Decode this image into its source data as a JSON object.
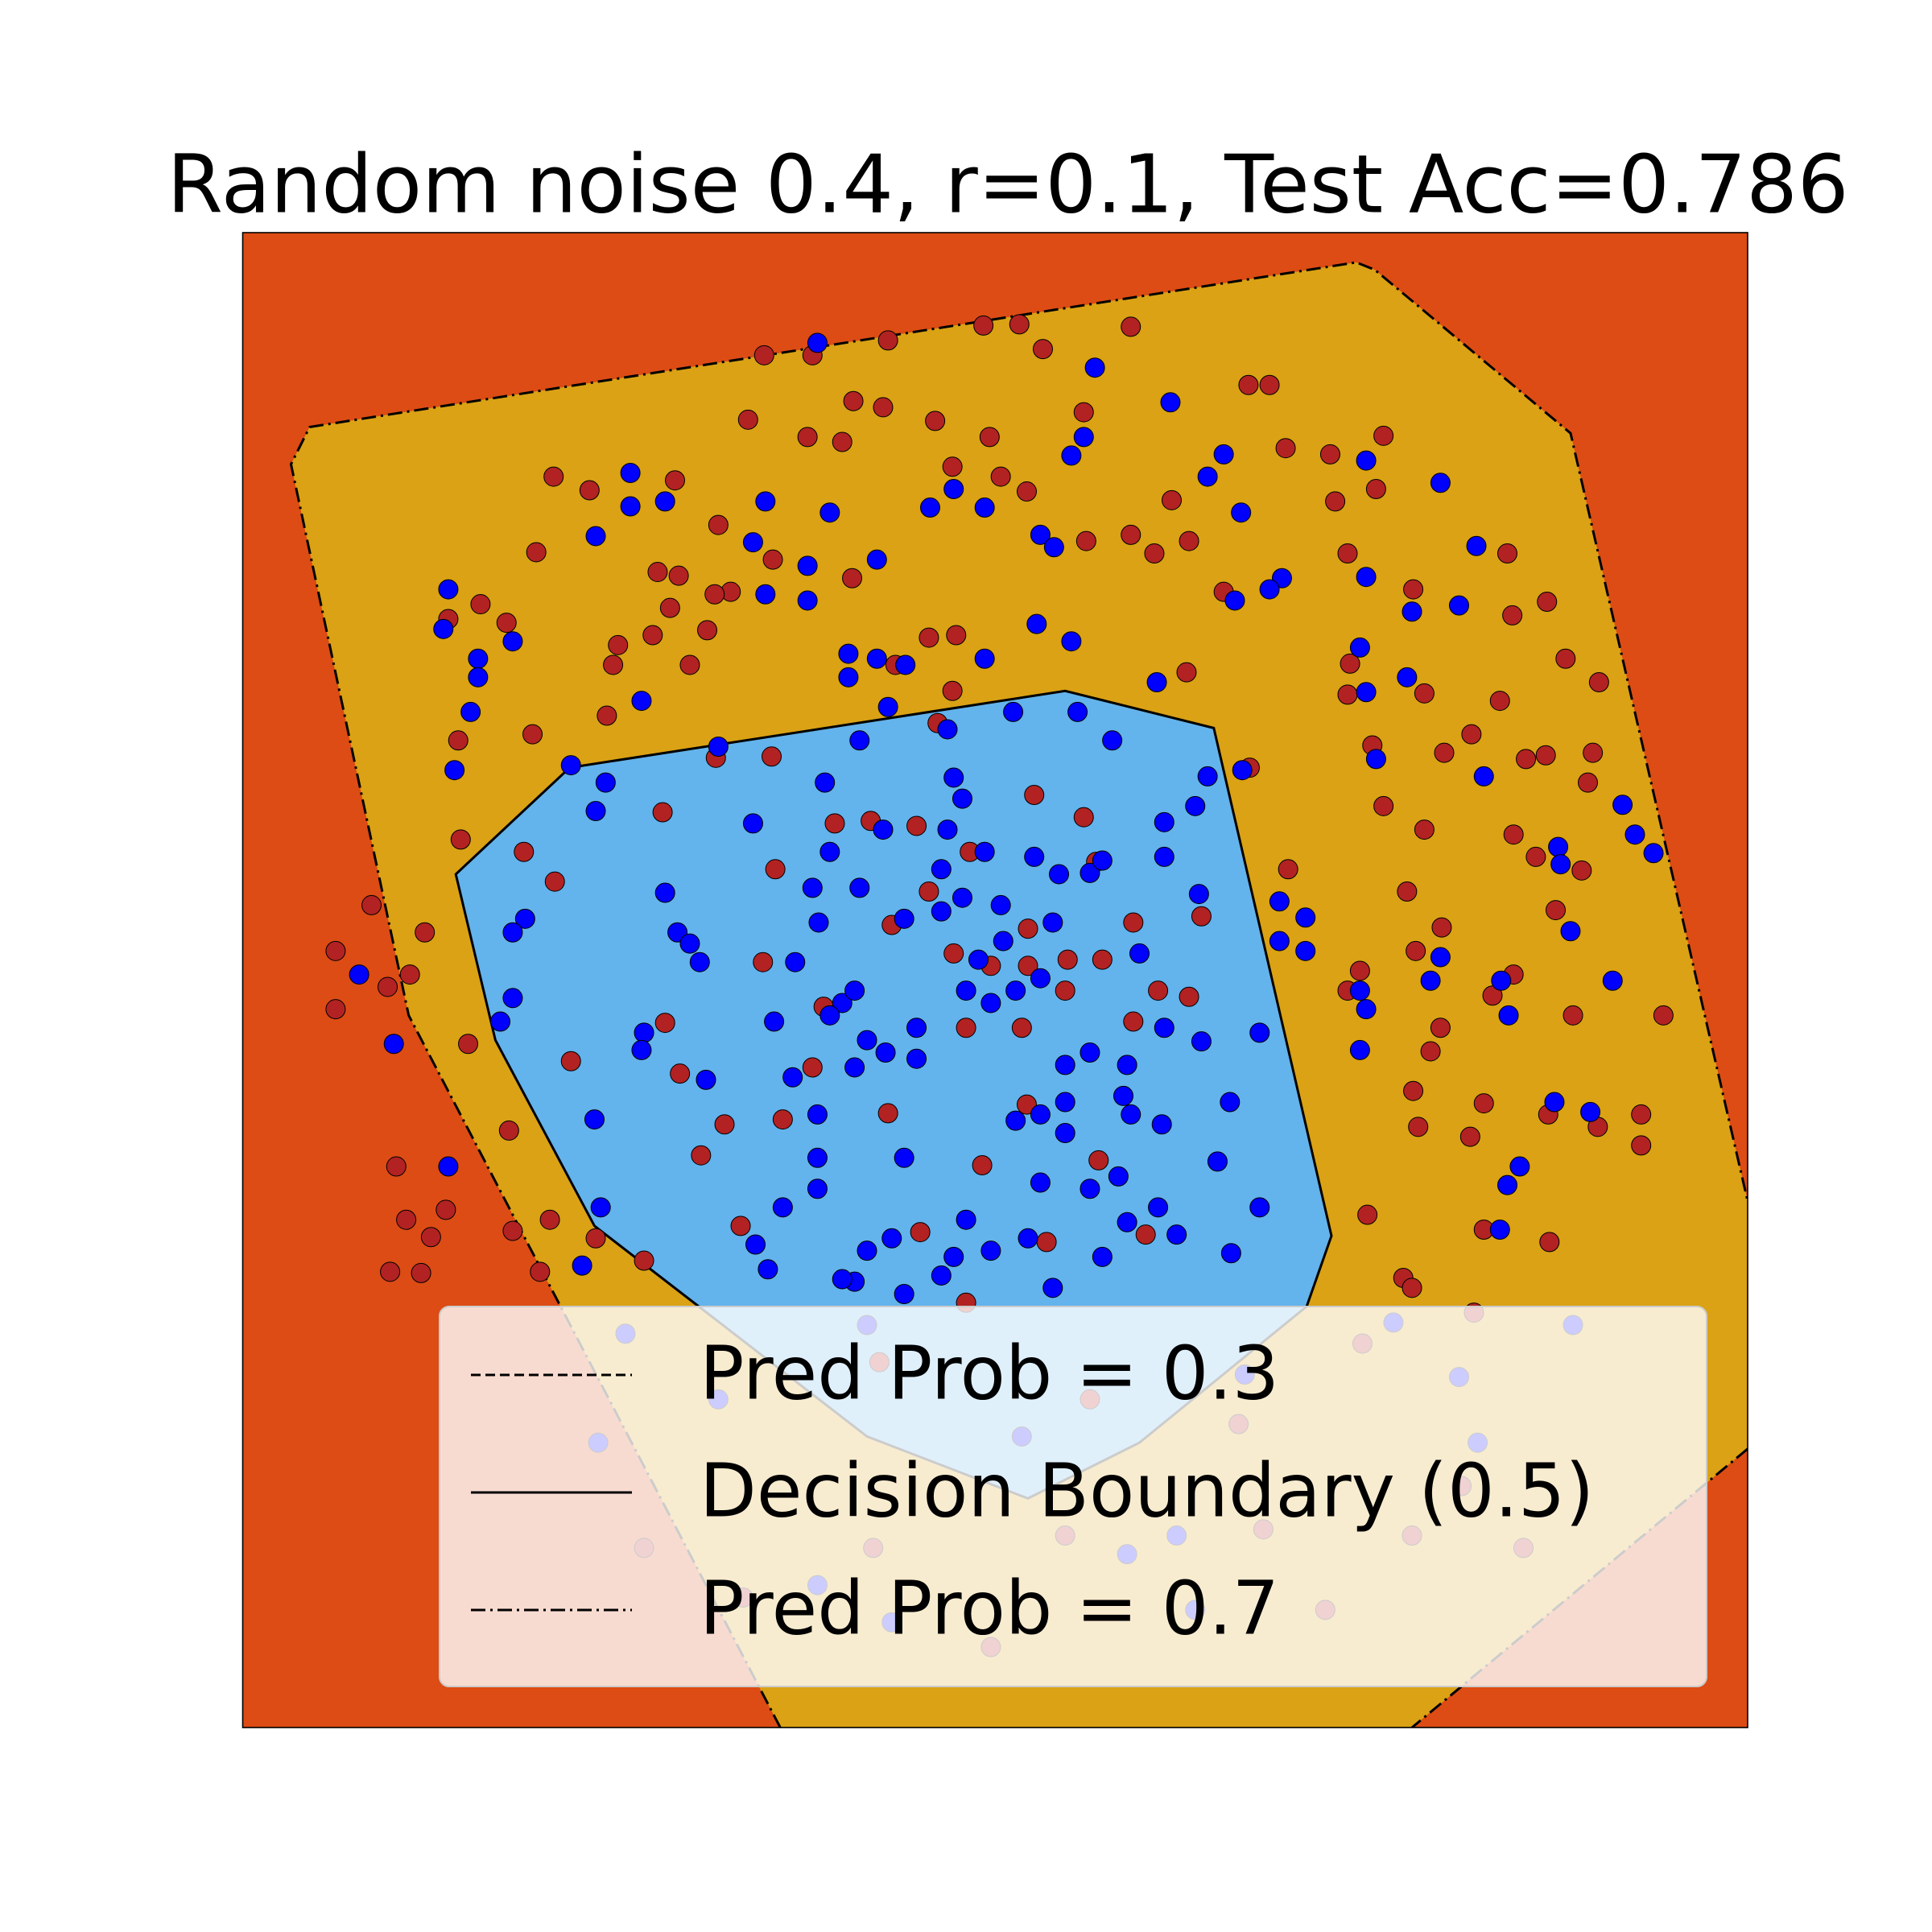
{
  "chart_data": {
    "type": "scatter",
    "title": "Random noise 0.4, r=0.1, Test Acc=0.786",
    "xlim": [
      196,
      1411
    ],
    "ylim": [
      1395,
      188
    ],
    "background_color": "#dc4c14",
    "regions": [
      {
        "color": "#daa214",
        "x": [
          630,
          330,
          235,
          250,
          1095,
          1110,
          1268,
          1411,
          1411,
          1140
        ],
        "y": [
          1395,
          820,
          375,
          345,
          212,
          218,
          350,
          970,
          1170,
          1395
        ]
      },
      {
        "color": "#63b3ec",
        "x": [
          460,
          860,
          980,
          1075,
          1055,
          920,
          830,
          700,
          480,
          400,
          368
        ],
        "y": [
          620,
          558,
          588,
          998,
          1055,
          1165,
          1210,
          1160,
          990,
          840,
          706
        ]
      }
    ],
    "contours": [
      {
        "name": "Pred Prob = 0.3",
        "linestyle": "dashed",
        "x": [],
        "y": []
      },
      {
        "name": "Decision Boundary (0.5)",
        "linestyle": "solid",
        "x": [
          460,
          860,
          980,
          1075,
          1055,
          920,
          830,
          700,
          480,
          400,
          368,
          460
        ],
        "y": [
          620,
          558,
          588,
          998,
          1055,
          1165,
          1210,
          1160,
          990,
          840,
          706,
          620
        ]
      },
      {
        "name": "Pred Prob = 0.7",
        "linestyle": "dashdot",
        "x": [
          630,
          330,
          235,
          250,
          1095,
          1110,
          1268,
          1411,
          null,
          1411,
          1140
        ],
        "y": [
          1395,
          820,
          375,
          345,
          212,
          218,
          350,
          970,
          null,
          1170,
          1395
        ]
      }
    ],
    "series": [
      {
        "color": "#b22222",
        "x": [
          617,
          656,
          717,
          794,
          823,
          913,
          842,
          1008,
          1025,
          689,
          713,
          604,
          652,
          680,
          755,
          799,
          875,
          769,
          447,
          476,
          545,
          580,
          433,
          531,
          548,
          541,
          499,
          527,
          571,
          557,
          495,
          590,
          577,
          624,
          688,
          750,
          772,
          723,
          769,
          757,
          808,
          829,
          877,
          913,
          960,
          932,
          946,
          1038,
          1074,
          1117,
          1078,
          1111,
          1088,
          1141,
          1217,
          1221,
          1249,
          1264,
          1291,
          1211,
          1188,
          1232,
          1248,
          1286,
          1282,
          1166,
          1150,
          1090,
          1088,
          1108,
          1117,
          1150,
          1222,
          1240,
          1277,
          1256,
          1136,
          1164,
          1143,
          1222,
          1205,
          1163,
          1155,
          1270,
          1343,
          1141,
          1198,
          1145,
          1187,
          1250,
          1290,
          1325,
          1325,
          1104,
          1133,
          1198,
          1251,
          1040,
          1098,
          1088,
          1009,
          958,
          988,
          372,
          423,
          448,
          300,
          343,
          331,
          271,
          271,
          313,
          378,
          411,
          320,
          360,
          328,
          348,
          315,
          340,
          414,
          444,
          436,
          481,
          520,
          461,
          537,
          549,
          585,
          566,
          598,
          632,
          656,
          616,
          665,
          720,
          750,
          740,
          783,
          835,
          875,
          885,
          830,
          862,
          800,
          830,
          770,
          780,
          825,
          860,
          890,
          915,
          970,
          935,
          960,
          915,
          887,
          793,
          829,
          743,
          845,
          925,
          717,
          780,
          535,
          674,
          703,
          626,
          578,
          623,
          490,
          430,
          370,
          388,
          409,
          362,
          705,
          860,
          1020,
          1140,
          1230,
          1180,
          1000,
          520,
          600,
          800,
          1070,
          1190,
          1140,
          1100,
          710,
          880
        ],
        "y": [
          287,
          287,
          275,
          263,
          262,
          264,
          282,
          311,
          311,
          324,
          329,
          339,
          353,
          357,
          340,
          353,
          333,
          377,
          385,
          396,
          388,
          424,
          446,
          462,
          465,
          491,
          521,
          513,
          509,
          537,
          537,
          478,
          480,
          452,
          467,
          515,
          513,
          537,
          558,
          584,
          385,
          397,
          437,
          432,
          437,
          447,
          404,
          362,
          367,
          352,
          405,
          395,
          447,
          476,
          447,
          497,
          486,
          532,
          551,
          566,
          593,
          613,
          610,
          608,
          632,
          608,
          560,
          536,
          561,
          602,
          651,
          670,
          674,
          692,
          703,
          735,
          720,
          749,
          768,
          787,
          804,
          830,
          849,
          820,
          820,
          881,
          891,
          910,
          918,
          900,
          910,
          900,
          925,
          981,
          1032,
          993,
          1003,
          702,
          784,
          800,
          620,
          543,
          478,
          678,
          688,
          712,
          731,
          753,
          787,
          768,
          815,
          797,
          843,
          913,
          942,
          977,
          985,
          999,
          1027,
          1028,
          994,
          985,
          1027,
          1000,
          1018,
          857,
          826,
          867,
          908,
          933,
          990,
          904,
          862,
          777,
          813,
          747,
          720,
          667,
          688,
          642,
          660,
          696,
          750,
          775,
          780,
          780,
          770,
          830,
          830,
          800,
          775,
          745,
          740,
          800,
          805,
          825,
          937,
          941,
          892,
          995,
          1003,
          997,
          899,
          1052,
          656,
          665,
          663,
          702,
          612,
          611,
          578,
          593,
          598,
          488,
          503,
          500,
          1250,
          1240,
          1235,
          1240,
          1250,
          1200,
          1150,
          1250,
          1290,
          1330,
          1300,
          1060,
          1040,
          1085,
          1100,
          1130
        ]
      },
      {
        "color": "#0000ff",
        "x": [
          660,
          884,
          945,
          875,
          865,
          988,
          975,
          1163,
          1002,
          1103,
          509,
          509,
          537,
          481,
          618,
          670,
          608,
          652,
          618,
          652,
          708,
          751,
          795,
          770,
          840,
          851,
          1103,
          1140,
          1178,
          1192,
          1035,
          1025,
          997,
          837,
          865,
          795,
          685,
          685,
          708,
          731,
          362,
          358,
          386,
          386,
          414,
          380,
          367,
          518,
          461,
          489,
          481,
          717,
          765,
          580,
          818,
          870,
          898,
          934,
          975,
          1003,
          965,
          940,
          1098,
          1103,
          1136,
          1111,
          1198,
          1310,
          1320,
          1335,
          1258,
          1260,
          1268,
          1302,
          1212,
          1218,
          1163,
          1155,
          1098,
          1103,
          1054,
          1054,
          1033,
          1098,
          1017,
          983,
          993,
          1017,
          1033,
          968,
          970,
          290,
          318,
          362,
          480,
          485,
          404,
          414,
          424,
          414,
          537,
          547,
          565,
          520,
          518,
          557,
          570,
          608,
          666,
          694,
          670,
          713,
          656,
          661,
          642,
          694,
          770,
          777,
          765,
          760,
          795,
          777,
          808,
          760,
          730,
          810,
          790,
          780,
          800,
          820,
          840,
          850,
          835,
          855,
          880,
          890,
          940,
          920,
          940,
          910,
          880,
          860,
          860,
          840,
          820,
          860,
          880,
          840,
          830,
          800,
          780,
          770,
          760,
          730,
          700,
          690,
          720,
          730,
          660,
          660,
          640,
          660,
          690,
          715,
          740,
          740,
          700,
          680,
          690,
          670,
          625,
          610,
          620,
          632,
          680,
          850,
          890,
          910,
          903,
          935,
          913,
          907,
          938,
          950,
          994,
          1211,
          1227,
          1217,
          1255,
          1284,
          470,
          505,
          483,
          580,
          1178,
          1193,
          1270,
          1005,
          950,
          910,
          965,
          720,
          660,
          1125,
          700,
          825
        ],
        "y": [
          277,
          297,
          325,
          353,
          368,
          367,
          385,
          390,
          414,
          372,
          382,
          409,
          405,
          433,
          405,
          414,
          438,
          457,
          480,
          485,
          452,
          410,
          410,
          395,
          432,
          442,
          466,
          494,
          489,
          441,
          467,
          476,
          485,
          504,
          518,
          532,
          528,
          547,
          532,
          537,
          476,
          508,
          532,
          547,
          518,
          575,
          622,
          566,
          618,
          632,
          655,
          571,
          589,
          603,
          575,
          575,
          598,
          551,
          627,
          622,
          651,
          664,
          523,
          559,
          547,
          613,
          627,
          650,
          674,
          689,
          684,
          698,
          752,
          792,
          792,
          820,
          773,
          792,
          800,
          815,
          741,
          768,
          760,
          848,
          975,
          938,
          890,
          834,
          728,
          722,
          841,
          787,
          843,
          942,
          904,
          975,
          825,
          806,
          742,
          753,
          721,
          753,
          777,
          834,
          848,
          762,
          872,
          665,
          632,
          598,
          688,
          670,
          717,
          745,
          777,
          717,
          628,
          645,
          670,
          702,
          688,
          725,
          731,
          736,
          742,
          760,
          775,
          800,
          810,
          800,
          790,
          745,
          692,
          706,
          705,
          695,
          692,
          770,
          830,
          860,
          850,
          860,
          890,
          900,
          905,
          915,
          960,
          955,
          1000,
          1010,
          985,
          1015,
          1030,
          1045,
          1010,
          1035,
          1000,
          935,
          935,
          960,
          870,
          900,
          862,
          850,
          855,
          830,
          840,
          810,
          800,
          820,
          825,
          1005,
          1025,
          975,
          1033,
          1040,
          1015,
          987,
          950,
          975,
          900,
          885,
          908,
          997,
          1012,
          993,
          942,
          957,
          890,
          898,
          1022,
          1077,
          1165,
          1130,
          1112,
          1165,
          1070,
          1110,
          1240,
          1255,
          1300,
          1310,
          1280,
          1068,
          1070,
          1160
        ]
      }
    ],
    "legend_loc": "lower right"
  }
}
